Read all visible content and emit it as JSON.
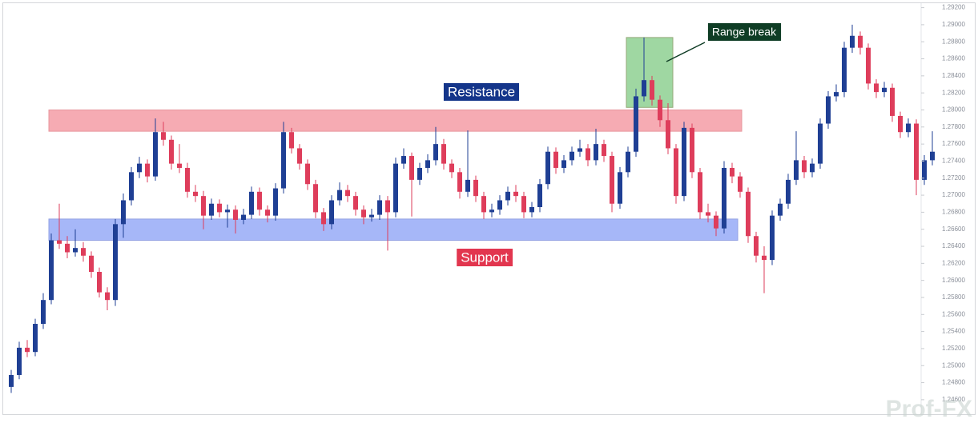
{
  "chart_data": {
    "type": "candlestick",
    "up_color": "#1f3f94",
    "down_color": "#de3d5b",
    "grid": false,
    "ylim": [
      1.2443,
      1.2929
    ],
    "yticks": [
      {
        "value": 1.246,
        "label": "1.24600"
      },
      {
        "value": 1.248,
        "label": "1.24800"
      },
      {
        "value": 1.25,
        "label": "1.25000"
      },
      {
        "value": 1.252,
        "label": "1.25200"
      },
      {
        "value": 1.254,
        "label": "1.25400"
      },
      {
        "value": 1.256,
        "label": "1.25600"
      },
      {
        "value": 1.258,
        "label": "1.25800"
      },
      {
        "value": 1.26,
        "label": "1.26000"
      },
      {
        "value": 1.262,
        "label": "1.26200"
      },
      {
        "value": 1.264,
        "label": "1.26400"
      },
      {
        "value": 1.266,
        "label": "1.26600"
      },
      {
        "value": 1.268,
        "label": "1.26800"
      },
      {
        "value": 1.27,
        "label": "1.27000"
      },
      {
        "value": 1.272,
        "label": "1.27200"
      },
      {
        "value": 1.274,
        "label": "1.27400"
      },
      {
        "value": 1.276,
        "label": "1.27600"
      },
      {
        "value": 1.278,
        "label": "1.27800"
      },
      {
        "value": 1.28,
        "label": "1.28000"
      },
      {
        "value": 1.282,
        "label": "1.28200"
      },
      {
        "value": 1.284,
        "label": "1.28400"
      },
      {
        "value": 1.286,
        "label": "1.28600"
      },
      {
        "value": 1.288,
        "label": "1.28800"
      },
      {
        "value": 1.29,
        "label": "1.29000"
      },
      {
        "value": 1.292,
        "label": "1.29200"
      }
    ],
    "zones": [
      {
        "label": "Resistance",
        "low": 1.2775,
        "high": 1.28,
        "color": "#f6a3ab",
        "label_color": "#14358a"
      },
      {
        "label": "Support",
        "low": 1.2647,
        "high": 1.2672,
        "color": "#9db0f8",
        "label_color": "#e2364f"
      },
      {
        "label": "Range break",
        "low": 1.2803,
        "high": 1.2885,
        "color": "#95d398",
        "label_color": "#0f3d25"
      }
    ],
    "watermark": "Prof-FX",
    "candles": [
      [
        1.2475,
        1.2495,
        1.2468,
        1.2489
      ],
      [
        1.2489,
        1.2528,
        1.2484,
        1.2521
      ],
      [
        1.2521,
        1.253,
        1.251,
        1.2516
      ],
      [
        1.2516,
        1.2555,
        1.2511,
        1.2549
      ],
      [
        1.2549,
        1.2585,
        1.2543,
        1.2577
      ],
      [
        1.2577,
        1.2655,
        1.2572,
        1.2647
      ],
      [
        1.2647,
        1.269,
        1.2637,
        1.2643
      ],
      [
        1.2643,
        1.2652,
        1.2626,
        1.2633
      ],
      [
        1.2633,
        1.266,
        1.2628,
        1.2638
      ],
      [
        1.2638,
        1.2645,
        1.2622,
        1.2629
      ],
      [
        1.2629,
        1.2634,
        1.2603,
        1.261
      ],
      [
        1.261,
        1.2615,
        1.258,
        1.2586
      ],
      [
        1.2586,
        1.2592,
        1.2565,
        1.2577
      ],
      [
        1.2577,
        1.2672,
        1.257,
        1.2666
      ],
      [
        1.2666,
        1.2702,
        1.265,
        1.2694
      ],
      [
        1.2694,
        1.2733,
        1.2688,
        1.2727
      ],
      [
        1.2727,
        1.2745,
        1.272,
        1.2737
      ],
      [
        1.2737,
        1.2742,
        1.2715,
        1.2722
      ],
      [
        1.2722,
        1.279,
        1.2717,
        1.2774
      ],
      [
        1.2774,
        1.2786,
        1.2758,
        1.2765
      ],
      [
        1.2765,
        1.277,
        1.273,
        1.2737
      ],
      [
        1.2737,
        1.276,
        1.2726,
        1.2732
      ],
      [
        1.2732,
        1.2738,
        1.2697,
        1.2704
      ],
      [
        1.2704,
        1.2712,
        1.2692,
        1.2699
      ],
      [
        1.2699,
        1.2705,
        1.266,
        1.2676
      ],
      [
        1.2676,
        1.2696,
        1.2671,
        1.269
      ],
      [
        1.269,
        1.2695,
        1.2674,
        1.268
      ],
      [
        1.268,
        1.2689,
        1.2662,
        1.2683
      ],
      [
        1.2683,
        1.2688,
        1.2655,
        1.2671
      ],
      [
        1.2671,
        1.2684,
        1.2666,
        1.2677
      ],
      [
        1.2677,
        1.271,
        1.2672,
        1.2704
      ],
      [
        1.2704,
        1.2709,
        1.2676,
        1.2683
      ],
      [
        1.2683,
        1.2688,
        1.2668,
        1.2676
      ],
      [
        1.2676,
        1.2714,
        1.267,
        1.2708
      ],
      [
        1.2708,
        1.2786,
        1.2702,
        1.2774
      ],
      [
        1.2774,
        1.2779,
        1.2749,
        1.2755
      ],
      [
        1.2755,
        1.276,
        1.273,
        1.2737
      ],
      [
        1.2737,
        1.2742,
        1.2706,
        1.2713
      ],
      [
        1.2713,
        1.2718,
        1.2673,
        1.268
      ],
      [
        1.268,
        1.2685,
        1.2658,
        1.2666
      ],
      [
        1.2666,
        1.27,
        1.266,
        1.2694
      ],
      [
        1.2694,
        1.2715,
        1.2688,
        1.2706
      ],
      [
        1.2706,
        1.2712,
        1.2692,
        1.2699
      ],
      [
        1.2699,
        1.2704,
        1.2676,
        1.2683
      ],
      [
        1.2683,
        1.2688,
        1.2666,
        1.2674
      ],
      [
        1.2674,
        1.2684,
        1.2669,
        1.2677
      ],
      [
        1.2677,
        1.27,
        1.2671,
        1.2694
      ],
      [
        1.2694,
        1.2699,
        1.2635,
        1.268
      ],
      [
        1.268,
        1.2744,
        1.2674,
        1.2737
      ],
      [
        1.2737,
        1.2755,
        1.2731,
        1.2746
      ],
      [
        1.2746,
        1.275,
        1.2675,
        1.2718
      ],
      [
        1.2718,
        1.2738,
        1.2712,
        1.2732
      ],
      [
        1.2732,
        1.2748,
        1.2726,
        1.2741
      ],
      [
        1.2741,
        1.278,
        1.2735,
        1.276
      ],
      [
        1.276,
        1.2766,
        1.273,
        1.2737
      ],
      [
        1.2737,
        1.2742,
        1.272,
        1.2727
      ],
      [
        1.2727,
        1.2732,
        1.2696,
        1.2704
      ],
      [
        1.2704,
        1.2776,
        1.2698,
        1.2718
      ],
      [
        1.2718,
        1.2723,
        1.2692,
        1.2699
      ],
      [
        1.2699,
        1.2704,
        1.2672,
        1.268
      ],
      [
        1.268,
        1.269,
        1.2674,
        1.2683
      ],
      [
        1.2683,
        1.27,
        1.2677,
        1.2694
      ],
      [
        1.2694,
        1.271,
        1.2688,
        1.2704
      ],
      [
        1.2704,
        1.2712,
        1.2692,
        1.2699
      ],
      [
        1.2699,
        1.2704,
        1.2673,
        1.268
      ],
      [
        1.268,
        1.2692,
        1.2674,
        1.2686
      ],
      [
        1.2686,
        1.2719,
        1.268,
        1.2713
      ],
      [
        1.2713,
        1.2757,
        1.2707,
        1.2751
      ],
      [
        1.2751,
        1.2756,
        1.2725,
        1.2732
      ],
      [
        1.2732,
        1.2747,
        1.2726,
        1.2741
      ],
      [
        1.2741,
        1.2757,
        1.2735,
        1.2751
      ],
      [
        1.2751,
        1.2765,
        1.2745,
        1.2755
      ],
      [
        1.2755,
        1.276,
        1.2734,
        1.2741
      ],
      [
        1.2741,
        1.2778,
        1.2735,
        1.276
      ],
      [
        1.276,
        1.2765,
        1.2739,
        1.2746
      ],
      [
        1.2746,
        1.2751,
        1.268,
        1.269
      ],
      [
        1.269,
        1.2733,
        1.2684,
        1.2727
      ],
      [
        1.2727,
        1.2757,
        1.2721,
        1.2751
      ],
      [
        1.2751,
        1.2825,
        1.2745,
        1.2816
      ],
      [
        1.2816,
        1.2885,
        1.281,
        1.2835
      ],
      [
        1.2835,
        1.284,
        1.2805,
        1.2812
      ],
      [
        1.2812,
        1.2817,
        1.278,
        1.2788
      ],
      [
        1.2788,
        1.2808,
        1.2748,
        1.2755
      ],
      [
        1.2755,
        1.276,
        1.269,
        1.2699
      ],
      [
        1.2699,
        1.2786,
        1.2693,
        1.2779
      ],
      [
        1.2779,
        1.2784,
        1.272,
        1.2727
      ],
      [
        1.2727,
        1.2732,
        1.2672,
        1.268
      ],
      [
        1.268,
        1.269,
        1.2668,
        1.2676
      ],
      [
        1.2676,
        1.2681,
        1.2652,
        1.2661
      ],
      [
        1.2661,
        1.274,
        1.2655,
        1.2732
      ],
      [
        1.2732,
        1.2738,
        1.2714,
        1.2722
      ],
      [
        1.2722,
        1.2727,
        1.2697,
        1.2704
      ],
      [
        1.2704,
        1.2709,
        1.2644,
        1.2652
      ],
      [
        1.2652,
        1.2657,
        1.2621,
        1.2629
      ],
      [
        1.2629,
        1.264,
        1.2585,
        1.2624
      ],
      [
        1.2624,
        1.2682,
        1.2618,
        1.2676
      ],
      [
        1.2676,
        1.2696,
        1.267,
        1.269
      ],
      [
        1.269,
        1.2725,
        1.2684,
        1.2718
      ],
      [
        1.2718,
        1.2775,
        1.2712,
        1.2741
      ],
      [
        1.2741,
        1.2746,
        1.272,
        1.2727
      ],
      [
        1.2727,
        1.2743,
        1.2721,
        1.2737
      ],
      [
        1.2737,
        1.279,
        1.2731,
        1.2784
      ],
      [
        1.2784,
        1.2822,
        1.2778,
        1.2816
      ],
      [
        1.2816,
        1.283,
        1.281,
        1.2821
      ],
      [
        1.2821,
        1.288,
        1.2815,
        1.2873
      ],
      [
        1.2873,
        1.29,
        1.2867,
        1.2887
      ],
      [
        1.2887,
        1.2892,
        1.2865,
        1.2873
      ],
      [
        1.2873,
        1.2878,
        1.2824,
        1.2831
      ],
      [
        1.2831,
        1.2836,
        1.2814,
        1.2821
      ],
      [
        1.2821,
        1.2833,
        1.2815,
        1.2826
      ],
      [
        1.2826,
        1.2831,
        1.2786,
        1.2793
      ],
      [
        1.2793,
        1.2798,
        1.2767,
        1.2774
      ],
      [
        1.2774,
        1.279,
        1.2768,
        1.2784
      ],
      [
        1.2784,
        1.2789,
        1.27,
        1.2718
      ],
      [
        1.2718,
        1.2747,
        1.2712,
        1.2741
      ],
      [
        1.2741,
        1.2775,
        1.2735,
        1.2751
      ]
    ]
  }
}
